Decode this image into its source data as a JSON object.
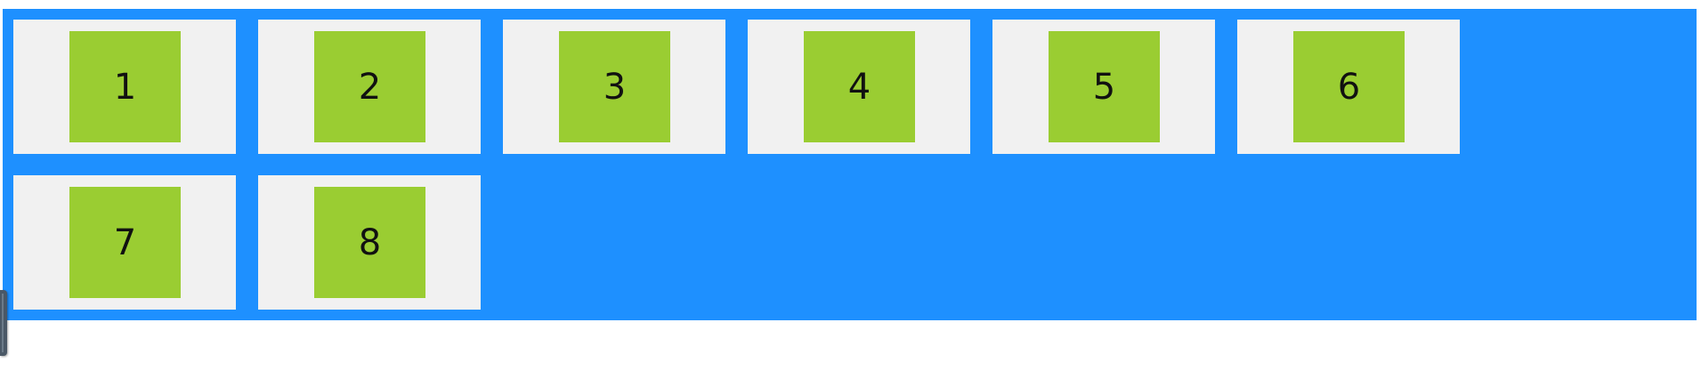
{
  "colors": {
    "container_background": "#1e90ff",
    "item_background": "#f1f1f1",
    "inner_box": "#9acd32",
    "text": "#111111"
  },
  "items": [
    {
      "label": "1"
    },
    {
      "label": "2"
    },
    {
      "label": "3"
    },
    {
      "label": "4"
    },
    {
      "label": "5"
    },
    {
      "label": "6"
    },
    {
      "label": "7"
    },
    {
      "label": "8"
    }
  ],
  "resize_handle": {
    "icon": "resize-handle-icon"
  }
}
